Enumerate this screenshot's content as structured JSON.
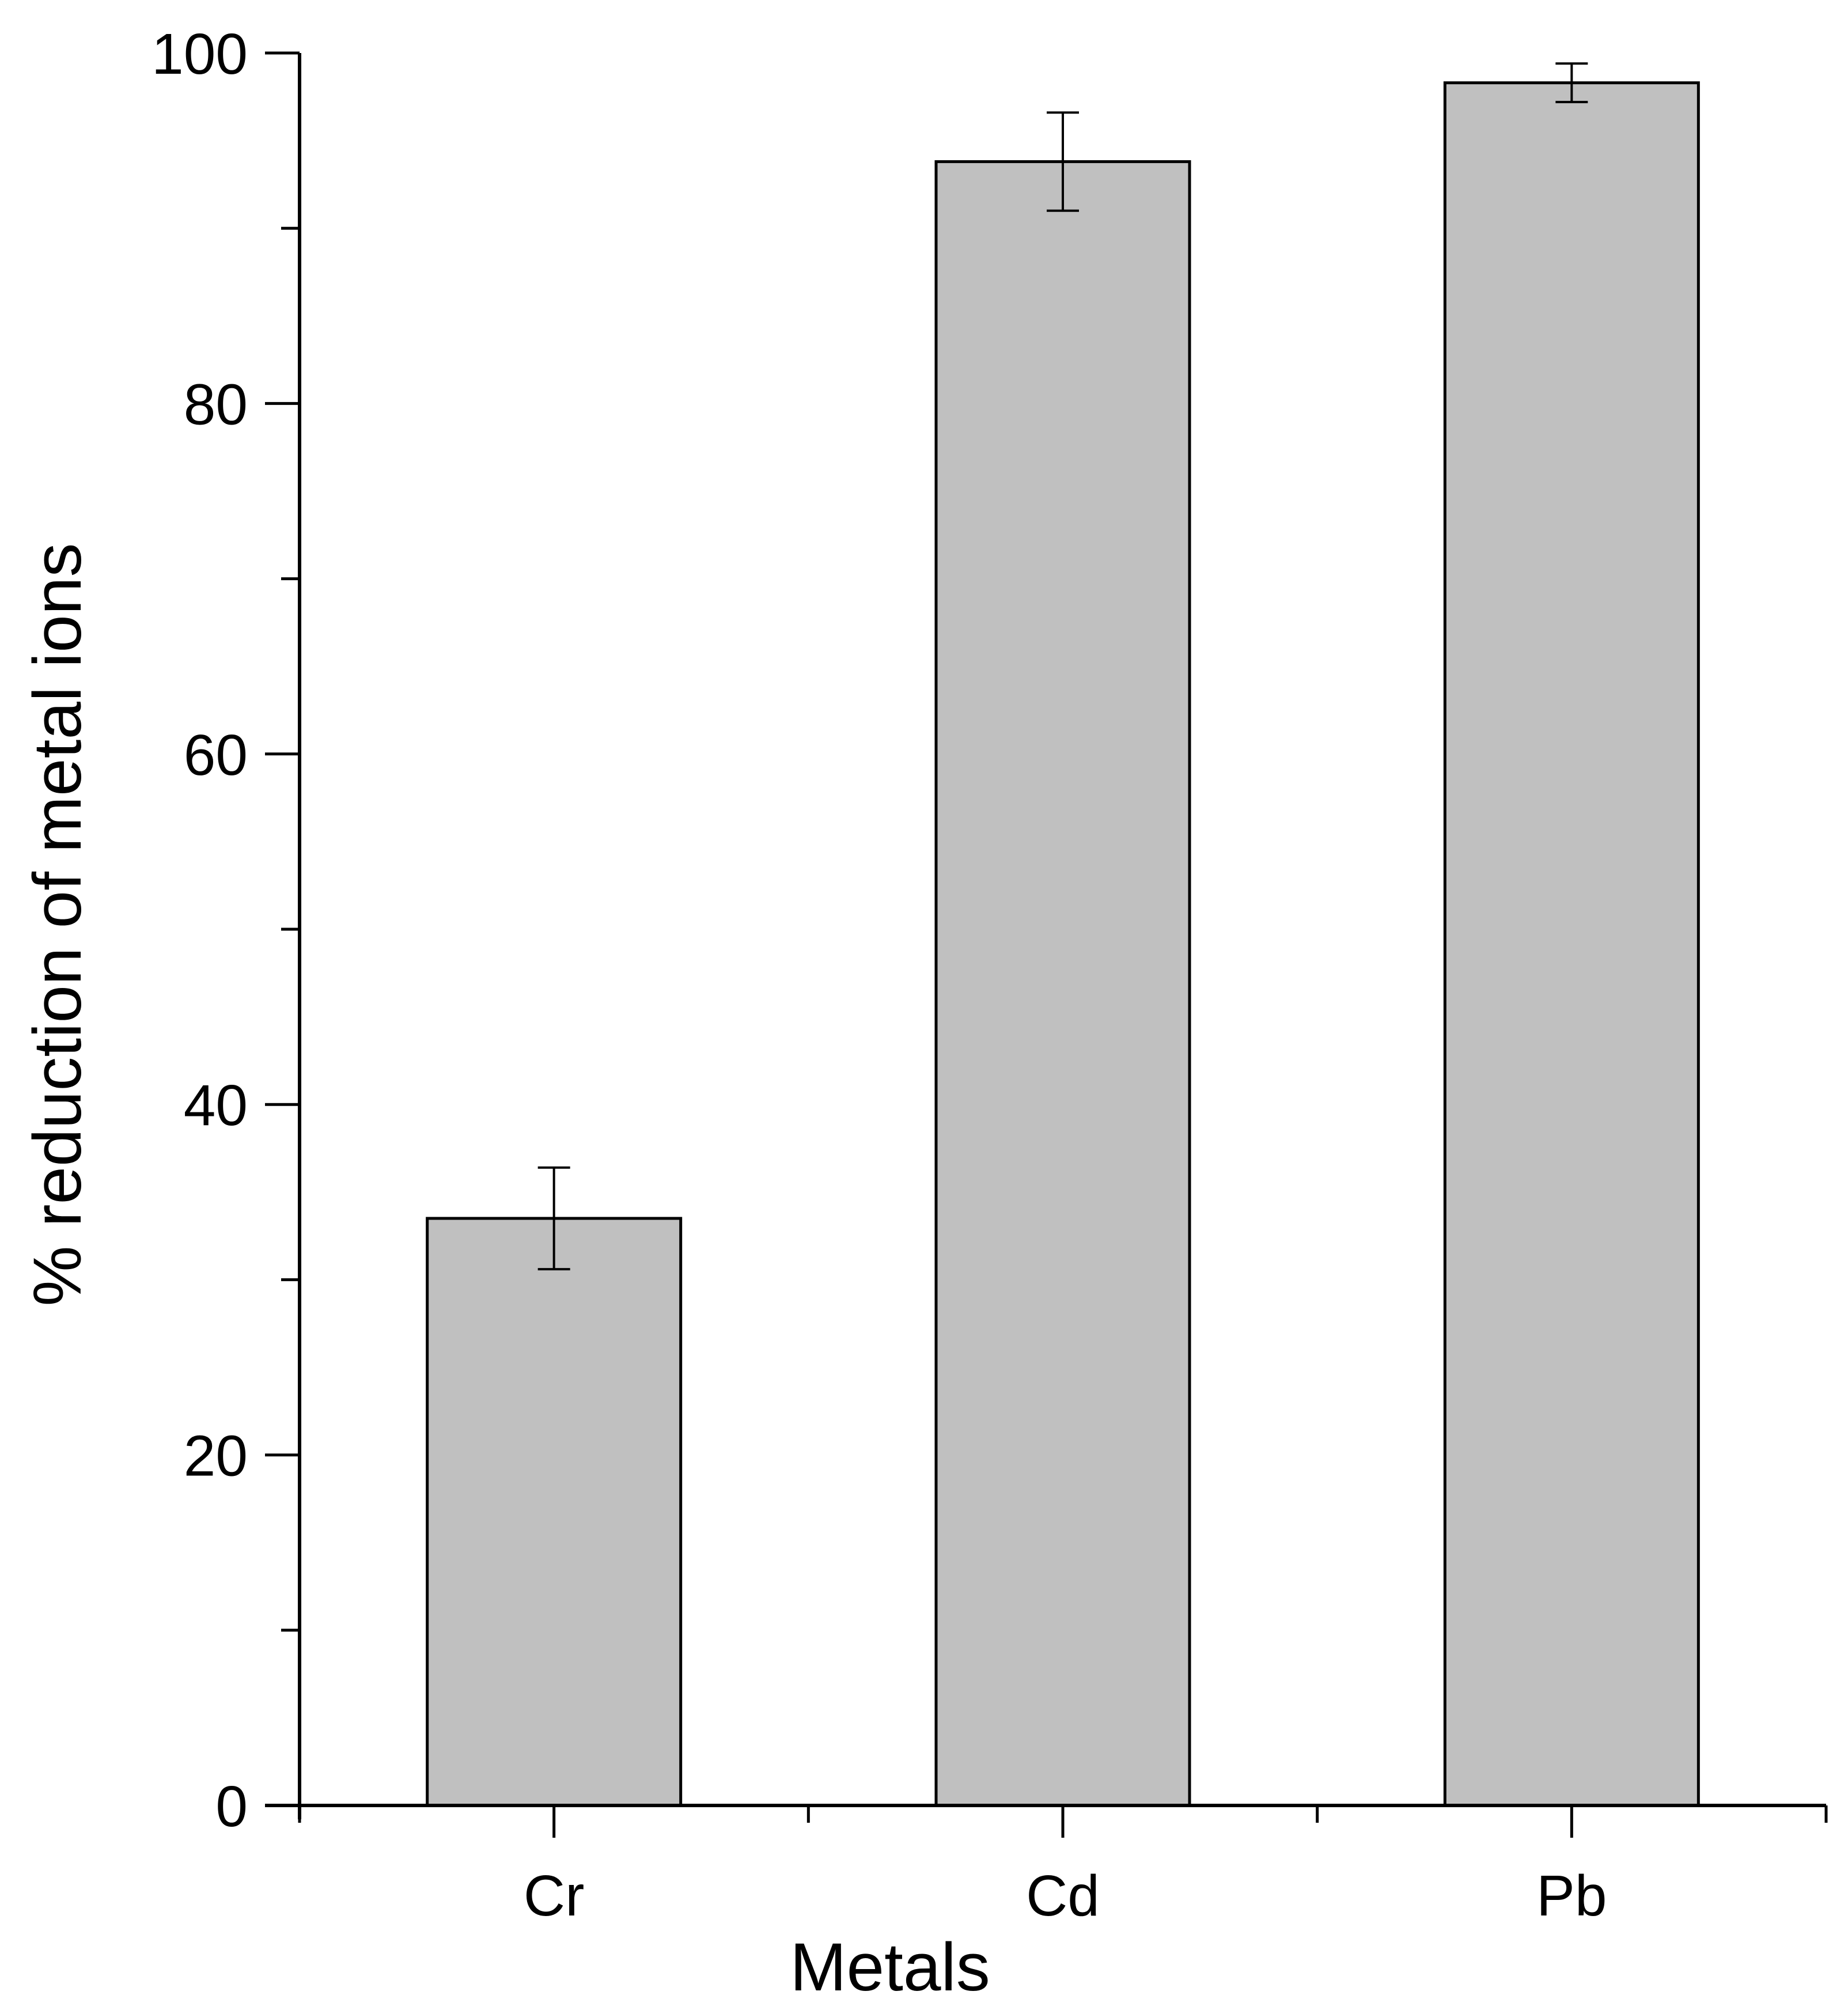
{
  "chart_data": {
    "type": "bar",
    "title": "",
    "xlabel": "Metals",
    "ylabel": "% reduction of metal ions",
    "categories": [
      "Cr",
      "Cd",
      "Pb"
    ],
    "values": [
      33.5,
      93.8,
      98.3
    ],
    "error": [
      2.9,
      2.8,
      1.1
    ],
    "ylim": [
      0,
      100
    ],
    "y_major_ticks": [
      0,
      20,
      40,
      60,
      80,
      100
    ],
    "y_major_labels": [
      "0",
      "20",
      "40",
      "60",
      "80",
      "100"
    ],
    "y_minor_ticks": [
      10,
      30,
      50,
      70,
      90
    ],
    "grid": false,
    "legend": "none",
    "colors": {
      "bar_fill": "#c0c0c0",
      "bar_stroke": "#000000",
      "axis": "#000000"
    }
  }
}
